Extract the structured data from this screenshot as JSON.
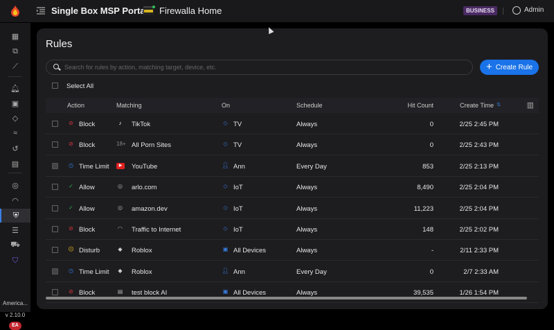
{
  "header": {
    "title": "Single Box MSP Portal",
    "box_name": "Firewalla Home",
    "plan_badge": "BUSINESS",
    "user": "Admin"
  },
  "sidebar": {
    "region": "America...",
    "version": "v 2.10.0",
    "user_initials": "EA",
    "items": [
      "dashboard",
      "devices",
      "flows",
      "alarms",
      "network",
      "tags",
      "routes",
      "history",
      "reports",
      "internet",
      "wifi",
      "rules",
      "logs",
      "vpn",
      "security"
    ],
    "active": "rules"
  },
  "main": {
    "title": "Rules",
    "search_placeholder": "Search for rules by action, matching target, device, etc.",
    "create_label": "Create Rule",
    "select_all": "Select All",
    "columns": {
      "action": "Action",
      "matching": "Matching",
      "on": "On",
      "schedule": "Schedule",
      "hit_count": "Hit Count",
      "create_time": "Create Time"
    },
    "rows": [
      {
        "action": "Block",
        "action_icon": "block-icon",
        "matching": "TikTok",
        "matching_icon": "tiktok-icon",
        "on": "TV",
        "on_icon": "tag-icon",
        "schedule": "Always",
        "hit_count": "0",
        "create_time": "2/25 2:45 PM",
        "disabled": false
      },
      {
        "action": "Block",
        "action_icon": "block-icon",
        "matching": "All Porn Sites",
        "matching_icon": "18-plus-icon",
        "on": "TV",
        "on_icon": "tag-icon",
        "schedule": "Always",
        "hit_count": "0",
        "create_time": "2/25 2:43 PM",
        "disabled": false
      },
      {
        "action": "Time Limit",
        "action_icon": "clock-icon",
        "matching": "YouTube",
        "matching_icon": "youtube-icon",
        "on": "Ann",
        "on_icon": "user-icon",
        "schedule": "Every Day",
        "hit_count": "853",
        "create_time": "2/25 2:13 PM",
        "disabled": true
      },
      {
        "action": "Allow",
        "action_icon": "check-icon",
        "matching": "arlo.com",
        "matching_icon": "globe-icon",
        "on": "IoT",
        "on_icon": "tag-icon",
        "schedule": "Always",
        "hit_count": "8,490",
        "create_time": "2/25 2:04 PM",
        "disabled": false
      },
      {
        "action": "Allow",
        "action_icon": "check-icon",
        "matching": "amazon.dev",
        "matching_icon": "globe-icon",
        "on": "IoT",
        "on_icon": "tag-icon",
        "schedule": "Always",
        "hit_count": "11,223",
        "create_time": "2/25 2:04 PM",
        "disabled": false
      },
      {
        "action": "Block",
        "action_icon": "block-icon",
        "matching": "Traffic to Internet",
        "matching_icon": "wifi-icon",
        "on": "IoT",
        "on_icon": "tag-icon",
        "schedule": "Always",
        "hit_count": "148",
        "create_time": "2/25 2:02 PM",
        "disabled": false
      },
      {
        "action": "Disturb",
        "action_icon": "disturb-icon",
        "matching": "Roblox",
        "matching_icon": "roblox-icon",
        "on": "All Devices",
        "on_icon": "devices-icon",
        "schedule": "Always",
        "hit_count": "-",
        "create_time": "2/11 2:33 PM",
        "disabled": false
      },
      {
        "action": "Time Limit",
        "action_icon": "clock-icon",
        "matching": "Roblox",
        "matching_icon": "roblox-icon",
        "on": "Ann",
        "on_icon": "user-icon",
        "schedule": "Every Day",
        "hit_count": "0",
        "create_time": "2/7 2:33 AM",
        "disabled": true
      },
      {
        "action": "Block",
        "action_icon": "block-icon",
        "matching": "test block AI",
        "matching_icon": "list-icon",
        "on": "All Devices",
        "on_icon": "devices-icon",
        "schedule": "Always",
        "hit_count": "39,535",
        "create_time": "1/26 1:54 PM",
        "disabled": false
      }
    ]
  },
  "colors": {
    "accent": "#1a73e8",
    "block": "#d9323c",
    "allow": "#2fb84f",
    "time_limit": "#2f7de1",
    "disturb": "#e3b21b",
    "badge": "#4a2a63"
  }
}
